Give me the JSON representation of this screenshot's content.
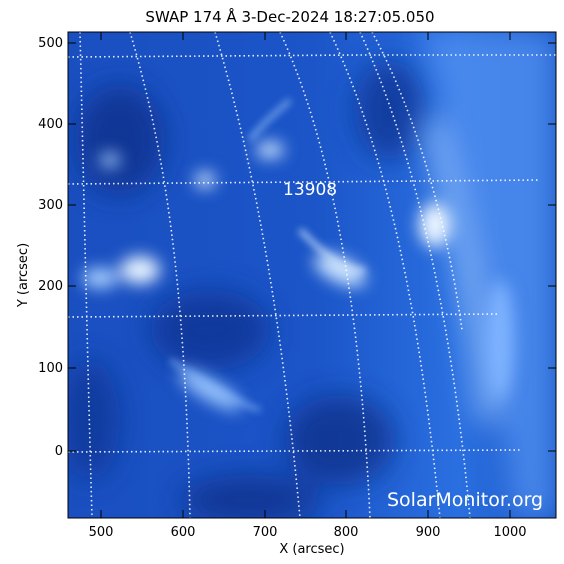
{
  "title": "SWAP 174 Å  3-Dec-2024 18:27:05.050",
  "x_axis": {
    "label": "X (arcsec)",
    "ticks": [
      "500",
      "600",
      "700",
      "800",
      "900",
      "1000"
    ]
  },
  "y_axis": {
    "label": "Y (arcsec)",
    "ticks": [
      "0",
      "100",
      "200",
      "300",
      "400",
      "500"
    ]
  },
  "active_region": "13908",
  "watermark": "SolarMonitor.org",
  "colors": {
    "background": "#ffffff",
    "disk_dark": "#0b2f8c",
    "disk_mid": "#1f63d6",
    "disk_bright": "#b9dcff",
    "grid": "#ffffff"
  }
}
